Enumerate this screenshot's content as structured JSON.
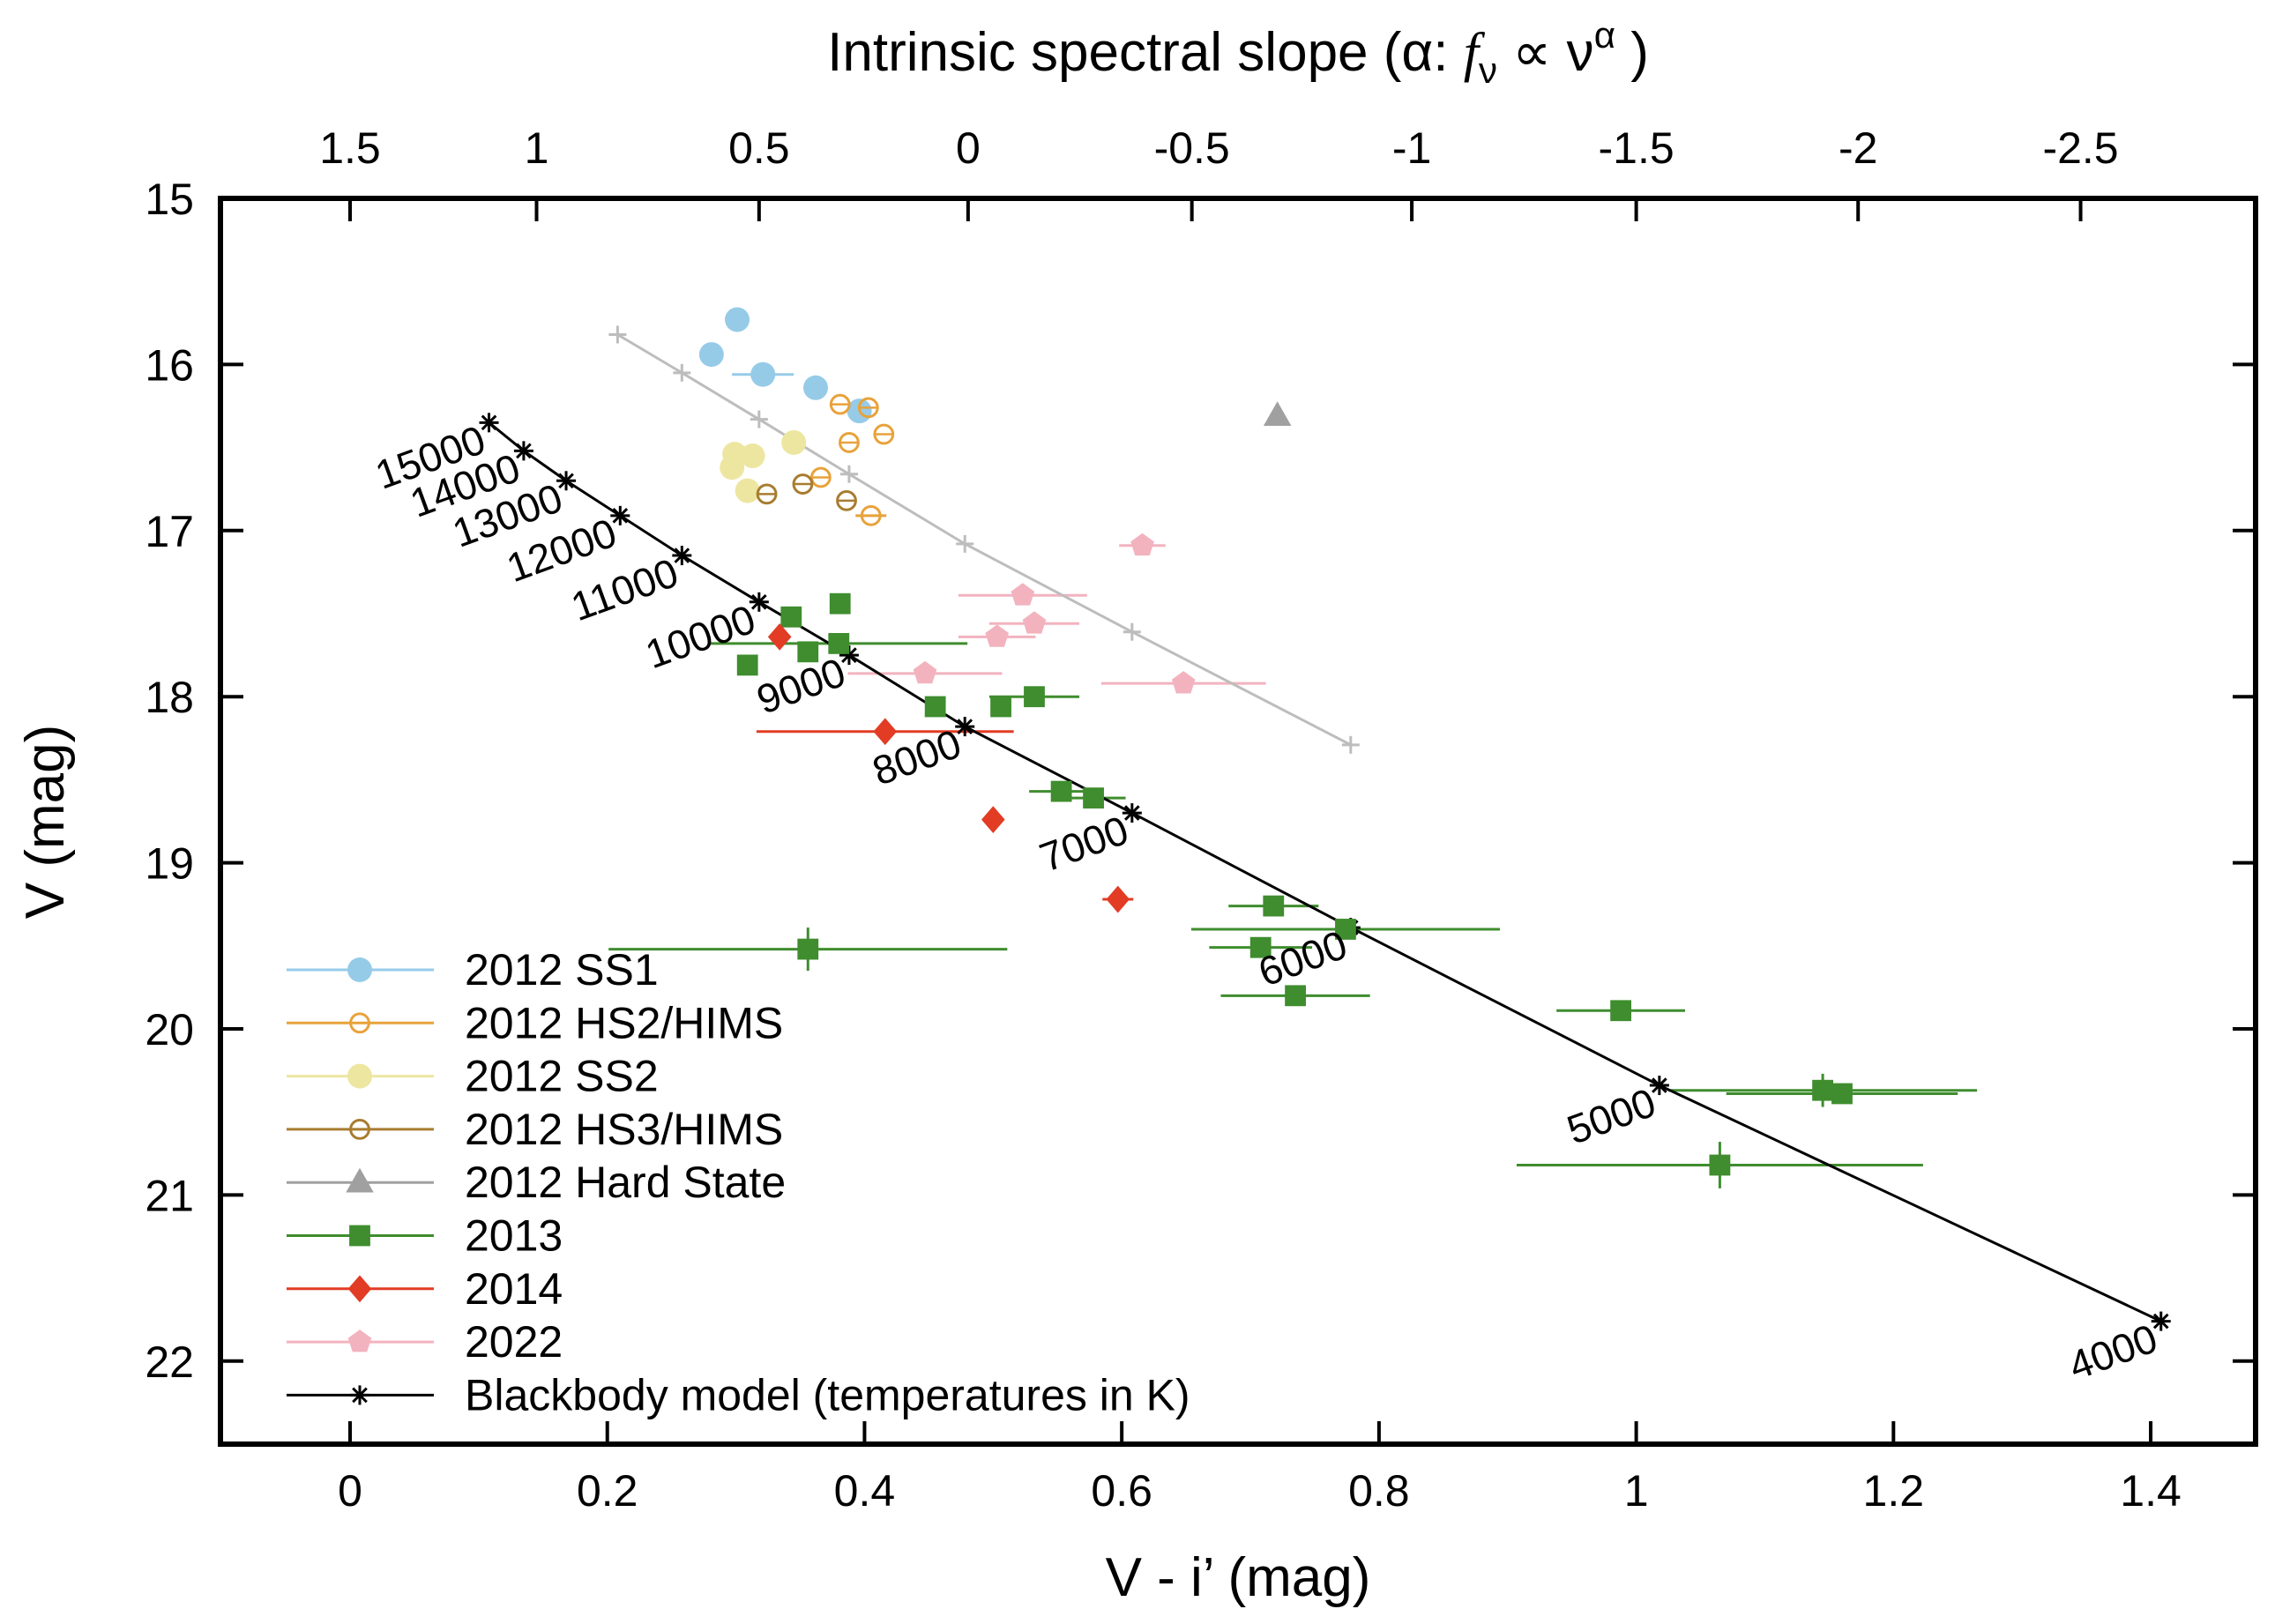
{
  "chart_data": {
    "type": "scatter",
    "title": "",
    "xlabel": "V - i’ (mag)",
    "ylabel": "V (mag)",
    "x2label_parts": {
      "prefix": "Intrinsic spectral slope (",
      "alpha": "α",
      "colon": ": ",
      "f": "f",
      "sub": "ν",
      "prop": " ∝ ν",
      "sup": "α",
      "suffix": " )"
    },
    "xlim": [
      -0.1,
      1.5
    ],
    "ylim": [
      22.5,
      15
    ],
    "x_ticks": [
      0,
      0.2,
      0.4,
      0.6,
      0.8,
      1,
      1.2,
      1.4
    ],
    "x_tick_labels": [
      "0",
      "0.2",
      "0.4",
      "0.6",
      "0.8",
      "1",
      "1.2",
      "1.4"
    ],
    "y_ticks": [
      15,
      16,
      17,
      18,
      19,
      20,
      21,
      22
    ],
    "y_tick_labels": [
      "15",
      "16",
      "17",
      "18",
      "19",
      "20",
      "21",
      "22"
    ],
    "top_ticks": [
      {
        "x": 0.0,
        "label": "1.5"
      },
      {
        "x": 0.145,
        "label": "1"
      },
      {
        "x": 0.318,
        "label": "0.5"
      },
      {
        "x": 0.4805,
        "label": "0"
      },
      {
        "x": 0.6545,
        "label": "-0.5"
      },
      {
        "x": 0.8255,
        "label": "-1"
      },
      {
        "x": 1.0,
        "label": "-1.5"
      },
      {
        "x": 1.1725,
        "label": "-2"
      },
      {
        "x": 1.3455,
        "label": "-2.5"
      }
    ],
    "grid": false,
    "legend_position": "bottom-left",
    "series": [
      {
        "name": "2012 SS1",
        "marker": "circle-filled",
        "color": "#96cbe8",
        "points": [
          {
            "x": 0.301,
            "y": 15.73
          },
          {
            "x": 0.281,
            "y": 15.94
          },
          {
            "x": 0.321,
            "y": 16.06,
            "xerr": 0.024
          },
          {
            "x": 0.362,
            "y": 16.14
          },
          {
            "x": 0.396,
            "y": 16.28
          }
        ]
      },
      {
        "name": "2012 HS2/HIMS",
        "marker": "circle-open",
        "color": "#e8a23a",
        "points": [
          {
            "x": 0.381,
            "y": 16.24
          },
          {
            "x": 0.403,
            "y": 16.26
          },
          {
            "x": 0.388,
            "y": 16.47
          },
          {
            "x": 0.415,
            "y": 16.42
          },
          {
            "x": 0.366,
            "y": 16.68
          },
          {
            "x": 0.405,
            "y": 16.91,
            "xerr": 0.012
          }
        ]
      },
      {
        "name": "2012 SS2",
        "marker": "circle-filled",
        "color": "#ede6a0",
        "points": [
          {
            "x": 0.299,
            "y": 16.54
          },
          {
            "x": 0.313,
            "y": 16.55
          },
          {
            "x": 0.297,
            "y": 16.62
          },
          {
            "x": 0.345,
            "y": 16.47
          },
          {
            "x": 0.309,
            "y": 16.76
          }
        ]
      },
      {
        "name": "2012 HS3/HIMS",
        "marker": "circle-open",
        "color": "#a87c30",
        "points": [
          {
            "x": 0.324,
            "y": 16.78
          },
          {
            "x": 0.352,
            "y": 16.72
          },
          {
            "x": 0.386,
            "y": 16.82
          }
        ]
      },
      {
        "name": "2012 Hard State",
        "marker": "triangle",
        "color": "#a0a0a0",
        "points": [
          {
            "x": 0.721,
            "y": 16.31
          }
        ]
      },
      {
        "name": "2013",
        "marker": "square",
        "color": "#3f8d2e",
        "points": [
          {
            "x": 0.343,
            "y": 17.52
          },
          {
            "x": 0.381,
            "y": 17.44
          },
          {
            "x": 0.309,
            "y": 17.81
          },
          {
            "x": 0.356,
            "y": 17.73
          },
          {
            "x": 0.38,
            "y": 17.68,
            "xerr": 0.1
          },
          {
            "x": 0.455,
            "y": 18.06
          },
          {
            "x": 0.506,
            "y": 18.06
          },
          {
            "x": 0.532,
            "y": 18.0,
            "xerr": 0.035
          },
          {
            "x": 0.553,
            "y": 18.57,
            "xerr": 0.025
          },
          {
            "x": 0.578,
            "y": 18.61,
            "xerr": 0.025
          },
          {
            "x": 0.718,
            "y": 19.26,
            "xerr": 0.035
          },
          {
            "x": 0.774,
            "y": 19.4,
            "xerr": 0.12
          },
          {
            "x": 0.708,
            "y": 19.51,
            "xerr": 0.04
          },
          {
            "x": 0.735,
            "y": 19.8,
            "xerr": 0.058
          },
          {
            "x": 0.356,
            "y": 19.52,
            "xerr": 0.155,
            "yerr": 0.13
          },
          {
            "x": 0.988,
            "y": 19.89,
            "xerr": 0.05
          },
          {
            "x": 1.145,
            "y": 20.37,
            "xerr": 0.12,
            "yerr": 0.1
          },
          {
            "x": 1.16,
            "y": 20.39,
            "xerr": 0.09
          },
          {
            "x": 1.065,
            "y": 20.82,
            "xerr": 0.158,
            "yerr": 0.14
          }
        ]
      },
      {
        "name": "2014",
        "marker": "diamond",
        "color": "#e23c25",
        "points": [
          {
            "x": 0.334,
            "y": 17.64
          },
          {
            "x": 0.416,
            "y": 18.21,
            "xerr": 0.1
          },
          {
            "x": 0.5,
            "y": 18.74
          },
          {
            "x": 0.597,
            "y": 19.22,
            "xerr": 0.012
          }
        ]
      },
      {
        "name": "2022",
        "marker": "pentagon",
        "color": "#f2b3bf",
        "points": [
          {
            "x": 0.616,
            "y": 17.09,
            "xerr": 0.018
          },
          {
            "x": 0.523,
            "y": 17.39,
            "xerr": 0.05
          },
          {
            "x": 0.532,
            "y": 17.56,
            "xerr": 0.035
          },
          {
            "x": 0.503,
            "y": 17.64,
            "xerr": 0.03
          },
          {
            "x": 0.447,
            "y": 17.86,
            "xerr": 0.06
          },
          {
            "x": 0.648,
            "y": 17.92,
            "xerr": 0.064
          }
        ]
      }
    ],
    "gray_model": {
      "color": "#bdbdbd",
      "points": [
        {
          "x": 0.208,
          "y": 15.82
        },
        {
          "x": 0.258,
          "y": 16.05
        },
        {
          "x": 0.318,
          "y": 16.33
        },
        {
          "x": 0.388,
          "y": 16.66
        },
        {
          "x": 0.478,
          "y": 17.08
        },
        {
          "x": 0.608,
          "y": 17.61
        },
        {
          "x": 0.778,
          "y": 18.29
        }
      ]
    },
    "blackbody": {
      "name": "Blackbody model (temperatures in K)",
      "color": "#000000",
      "points": [
        {
          "x": 0.108,
          "y": 16.35,
          "label": "15000"
        },
        {
          "x": 0.135,
          "y": 16.52,
          "label": "14000"
        },
        {
          "x": 0.168,
          "y": 16.7,
          "label": "13000"
        },
        {
          "x": 0.21,
          "y": 16.91,
          "label": "12000"
        },
        {
          "x": 0.258,
          "y": 17.15,
          "label": "11000"
        },
        {
          "x": 0.318,
          "y": 17.43,
          "label": "10000"
        },
        {
          "x": 0.388,
          "y": 17.75,
          "label": "9000"
        },
        {
          "x": 0.478,
          "y": 18.18,
          "label": "8000"
        },
        {
          "x": 0.608,
          "y": 18.7,
          "label": "7000"
        },
        {
          "x": 0.778,
          "y": 19.39,
          "label": "6000"
        },
        {
          "x": 1.018,
          "y": 20.34,
          "label": "5000"
        },
        {
          "x": 1.408,
          "y": 21.76,
          "label": "4000"
        }
      ]
    }
  }
}
